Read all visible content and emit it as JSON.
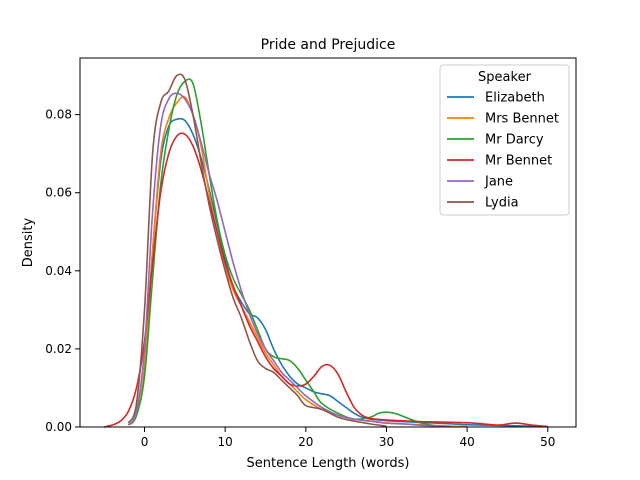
{
  "chart_data": {
    "type": "line",
    "title": "Pride and Prejudice",
    "xlabel": "Sentence Length (words)",
    "ylabel": "Density",
    "xlim": [
      -8.0,
      53.5
    ],
    "ylim": [
      0,
      0.0945
    ],
    "xticks": [
      0,
      10,
      20,
      30,
      40,
      50
    ],
    "yticks": [
      0.0,
      0.02,
      0.04,
      0.06,
      0.08
    ],
    "ytick_labels": [
      "0.00",
      "0.02",
      "0.04",
      "0.06",
      "0.08"
    ],
    "grid": false,
    "legend": {
      "title": "Speaker",
      "position": "top-right"
    },
    "series": [
      {
        "name": "Elizabeth",
        "color": "#1f77b4",
        "x": [
          -2,
          -1,
          0,
          1,
          2,
          3,
          4,
          5,
          6,
          7,
          8,
          9,
          10,
          11,
          12,
          13,
          14,
          15,
          16,
          17,
          18,
          19,
          20,
          21,
          22,
          23,
          24,
          25,
          26,
          27,
          28,
          29,
          30,
          32,
          34,
          36,
          38,
          40,
          42,
          44,
          46,
          48,
          50
        ],
        "y": [
          0.0005,
          0.003,
          0.015,
          0.045,
          0.068,
          0.077,
          0.0788,
          0.0785,
          0.075,
          0.069,
          0.061,
          0.052,
          0.043,
          0.036,
          0.032,
          0.029,
          0.028,
          0.025,
          0.02,
          0.016,
          0.013,
          0.011,
          0.01,
          0.009,
          0.0085,
          0.008,
          0.0065,
          0.005,
          0.0035,
          0.0025,
          0.002,
          0.0018,
          0.0016,
          0.0014,
          0.0012,
          0.001,
          0.0008,
          0.0006,
          0.0005,
          0.0004,
          0.0003,
          0.0002,
          0.0001
        ]
      },
      {
        "name": "Mrs Bennet",
        "color": "#ff7f0e",
        "x": [
          -2,
          -1,
          0,
          1,
          2,
          3,
          4,
          5,
          6,
          7,
          8,
          9,
          10,
          11,
          12,
          13,
          14,
          15,
          16,
          17,
          18,
          19,
          20,
          22,
          24,
          26,
          28,
          30,
          32,
          34,
          36,
          38,
          40
        ],
        "y": [
          0.0005,
          0.003,
          0.015,
          0.045,
          0.07,
          0.079,
          0.083,
          0.0845,
          0.08,
          0.072,
          0.06,
          0.05,
          0.041,
          0.035,
          0.031,
          0.027,
          0.023,
          0.019,
          0.016,
          0.013,
          0.011,
          0.009,
          0.007,
          0.0045,
          0.003,
          0.002,
          0.0015,
          0.001,
          0.0008,
          0.0006,
          0.0004,
          0.0002,
          0.0001
        ]
      },
      {
        "name": "Mr Darcy",
        "color": "#2ca02c",
        "x": [
          -2,
          -1,
          0,
          1,
          2,
          3,
          4,
          5,
          6,
          7,
          8,
          9,
          10,
          11,
          12,
          13,
          14,
          15,
          16,
          17,
          18,
          19,
          20,
          21,
          22,
          24,
          26,
          28,
          29,
          30,
          31,
          32,
          34,
          36
        ],
        "y": [
          0.0005,
          0.003,
          0.013,
          0.038,
          0.062,
          0.076,
          0.085,
          0.0885,
          0.088,
          0.078,
          0.065,
          0.053,
          0.044,
          0.038,
          0.034,
          0.03,
          0.025,
          0.02,
          0.018,
          0.0175,
          0.017,
          0.015,
          0.012,
          0.009,
          0.006,
          0.0035,
          0.002,
          0.0025,
          0.0035,
          0.0038,
          0.0035,
          0.0028,
          0.0012,
          0.0003
        ]
      },
      {
        "name": "Mr Bennet",
        "color": "#d62728",
        "x": [
          -5,
          -4,
          -3,
          -2,
          -1,
          0,
          1,
          2,
          3,
          4,
          5,
          6,
          7,
          8,
          9,
          10,
          11,
          12,
          13,
          14,
          15,
          16,
          17,
          18,
          19,
          20,
          21,
          22,
          23,
          24,
          25,
          26,
          27,
          28,
          30,
          32,
          34,
          36,
          38,
          40,
          42,
          44,
          46,
          48,
          50
        ],
        "y": [
          0.0,
          0.0005,
          0.0015,
          0.004,
          0.01,
          0.022,
          0.042,
          0.06,
          0.07,
          0.0745,
          0.075,
          0.072,
          0.066,
          0.058,
          0.05,
          0.042,
          0.036,
          0.031,
          0.026,
          0.022,
          0.018,
          0.015,
          0.013,
          0.011,
          0.0105,
          0.011,
          0.013,
          0.0155,
          0.0158,
          0.0135,
          0.009,
          0.005,
          0.003,
          0.0022,
          0.0018,
          0.0016,
          0.0014,
          0.0013,
          0.0012,
          0.0011,
          0.0008,
          0.0005,
          0.001,
          0.0005,
          0.0001
        ]
      },
      {
        "name": "Jane",
        "color": "#9467bd",
        "x": [
          -2,
          -1,
          0,
          1,
          2,
          3,
          4,
          5,
          6,
          7,
          8,
          9,
          10,
          11,
          12,
          13,
          14,
          15,
          16,
          17,
          18,
          19,
          20,
          22,
          24,
          26,
          28,
          30,
          32,
          34,
          36,
          38
        ],
        "y": [
          0.0005,
          0.004,
          0.02,
          0.055,
          0.077,
          0.084,
          0.0855,
          0.084,
          0.08,
          0.073,
          0.065,
          0.058,
          0.05,
          0.042,
          0.035,
          0.029,
          0.024,
          0.02,
          0.017,
          0.014,
          0.012,
          0.01,
          0.008,
          0.005,
          0.003,
          0.002,
          0.0015,
          0.001,
          0.0008,
          0.0005,
          0.0003,
          0.0001
        ]
      },
      {
        "name": "Lydia",
        "color": "#8c564b",
        "x": [
          -2,
          -1,
          0,
          1,
          2,
          3,
          4,
          5,
          6,
          7,
          8,
          9,
          10,
          11,
          12,
          13,
          14,
          15,
          16,
          17,
          18,
          19,
          20,
          22,
          24,
          26,
          28,
          30
        ],
        "y": [
          0.001,
          0.006,
          0.03,
          0.07,
          0.083,
          0.086,
          0.09,
          0.089,
          0.08,
          0.068,
          0.057,
          0.048,
          0.04,
          0.033,
          0.028,
          0.022,
          0.017,
          0.015,
          0.014,
          0.012,
          0.01,
          0.008,
          0.0055,
          0.0045,
          0.0025,
          0.0015,
          0.0008,
          0.0002
        ]
      }
    ]
  }
}
